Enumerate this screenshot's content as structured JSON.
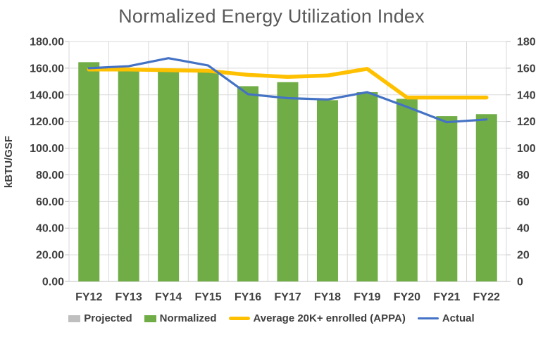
{
  "chart_data": {
    "type": "bar",
    "title": "Normalized Energy Utilization Index",
    "categories": [
      "FY12",
      "FY13",
      "FY14",
      "FY15",
      "FY16",
      "FY17",
      "FY18",
      "FY19",
      "FY20",
      "FY21",
      "FY22"
    ],
    "series": [
      {
        "name": "Projected",
        "type": "bar",
        "color": "#BFBFBF",
        "values": [
          null,
          null,
          null,
          null,
          null,
          null,
          null,
          null,
          null,
          null,
          null
        ]
      },
      {
        "name": "Normalized",
        "type": "bar",
        "color": "#70AD47",
        "values": [
          164.5,
          158.5,
          158,
          157,
          146.5,
          149.5,
          136,
          142,
          137,
          124,
          125.5
        ]
      },
      {
        "name": "Average 20K+ enrolled (APPA)",
        "type": "line",
        "color": "#FFC000",
        "stroke_width": 5.5,
        "values": [
          159,
          159,
          158.5,
          158,
          155,
          153.5,
          154.5,
          159.5,
          138,
          138,
          138
        ]
      },
      {
        "name": "Actual",
        "type": "line",
        "color": "#4472C4",
        "stroke_width": 3.2,
        "values": [
          160,
          161.5,
          167.5,
          162,
          140.5,
          137.5,
          136.5,
          142,
          131,
          119.5,
          121.5
        ]
      }
    ],
    "ylabel": "kBTU/GSF",
    "xlabel": "",
    "axes": {
      "left": {
        "min": 0,
        "max": 180,
        "step": 20,
        "decimals": 2
      },
      "right": {
        "min": 0,
        "max": 180,
        "step": 20,
        "decimals": 0
      }
    },
    "grid": true,
    "legend_position": "bottom"
  },
  "colors": {
    "title_text": "#595959",
    "axis_text": "#404040",
    "gridline": "#D9D9D9",
    "axis_line": "#C0C0C0",
    "background": "#FFFFFF"
  }
}
